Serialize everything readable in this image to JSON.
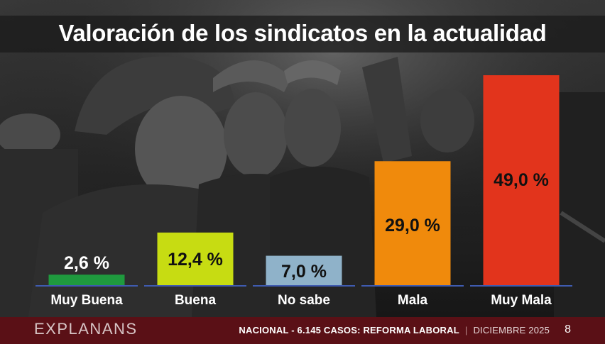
{
  "header": {
    "title": "Valoración de los sindicatos en la actualidad"
  },
  "footer": {
    "brand": "EXPLANANS",
    "prefix": "NACIONAL - 6.145 CASOS: ",
    "topic": "REFORMA LABORAL",
    "date": "DICIEMBRE 2025",
    "page": "8"
  },
  "colors": {
    "muy_buena": "#1f9a3e",
    "buena": "#c7dc12",
    "no_sabe": "#8fb2c9",
    "mala": "#f08a0c",
    "muy_mala": "#e2341c",
    "baseline": "#3f5bb0",
    "footer_bg": "#5a1016"
  },
  "chart_data": {
    "type": "bar",
    "categories": [
      "Muy Buena",
      "Buena",
      "No sabe",
      "Mala",
      "Muy Mala"
    ],
    "values": [
      2.6,
      12.4,
      7.0,
      29.0,
      49.0
    ],
    "value_labels": [
      "2,6 %",
      "12,4 %",
      "7,0 %",
      "29,0 %",
      "49,0 %"
    ],
    "ylim": [
      0,
      50
    ],
    "grid": false,
    "legend": "none"
  }
}
